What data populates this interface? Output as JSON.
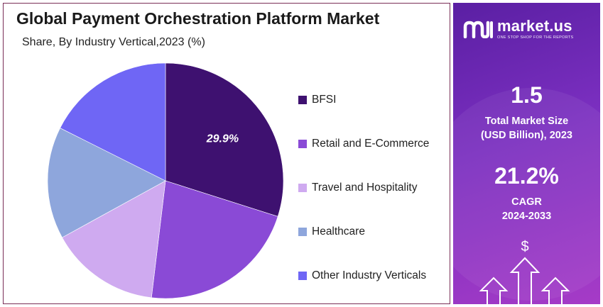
{
  "title": "Global Payment Orchestration Platform Market",
  "subtitle": "Share, By Industry Vertical,2023 (%)",
  "chart_data": {
    "type": "pie",
    "slices": [
      {
        "label": "BFSI",
        "value": 29.9,
        "color": "#3e1170",
        "data_label": "29.9%"
      },
      {
        "label": "Retail and E-Commerce",
        "value": 22.0,
        "color": "#8a4ad6",
        "data_label": ""
      },
      {
        "label": "Travel and Hospitality",
        "value": 15.1,
        "color": "#cfaaf0",
        "data_label": ""
      },
      {
        "label": "Healthcare",
        "value": 15.4,
        "color": "#8ea6dc",
        "data_label": ""
      },
      {
        "label": "Other Industry Verticals",
        "value": 17.6,
        "color": "#6f66f5",
        "data_label": ""
      }
    ],
    "start_angle_deg": 0,
    "direction": "clockwise",
    "legend_position": "right"
  },
  "legend": [
    {
      "label": "BFSI",
      "color": "#3e1170"
    },
    {
      "label": "Retail and E-Commerce",
      "color": "#8a4ad6"
    },
    {
      "label": "Travel and Hospitality",
      "color": "#cfaaf0"
    },
    {
      "label": "Healthcare",
      "color": "#8ea6dc"
    },
    {
      "label": "Other Industry Verticals",
      "color": "#6f66f5"
    }
  ],
  "sidebar": {
    "brand_name": "market.us",
    "brand_tagline": "ONE STOP SHOP FOR THE REPORTS",
    "market_size_value": "1.5",
    "market_size_label_1": "Total Market Size",
    "market_size_label_2": "(USD Billion), 2023",
    "cagr_value": "21.2%",
    "cagr_label_1": "CAGR",
    "cagr_label_2": "2024-2033",
    "dollar_symbol": "$",
    "icons": [
      "market-us-logo-icon",
      "dollar-icon",
      "up-arrow-icon"
    ]
  }
}
